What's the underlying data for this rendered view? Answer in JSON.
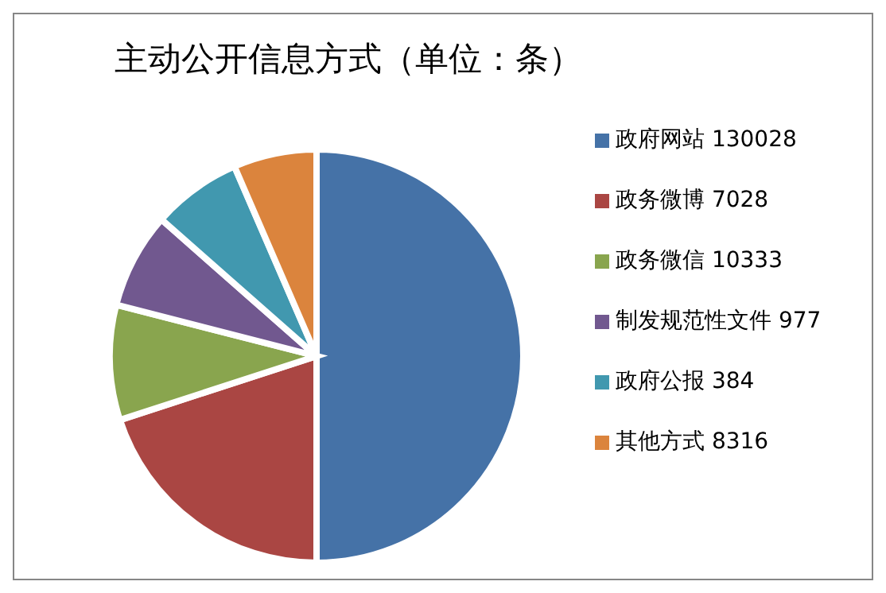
{
  "chart_data": {
    "type": "pie",
    "title": "主动公开信息方式（单位：条）",
    "categories": [
      "政府网站 130028",
      "政务微博 7028",
      "政务微信 10333",
      "制发规范性文件 977",
      "政府公报 384",
      "其他方式 8316"
    ],
    "values": [
      50,
      20,
      9,
      7.5,
      7,
      6.5
    ],
    "colors": [
      "#4572a7",
      "#aa4643",
      "#89a54e",
      "#71588f",
      "#4198af",
      "#db843d"
    ],
    "legend": "right"
  }
}
